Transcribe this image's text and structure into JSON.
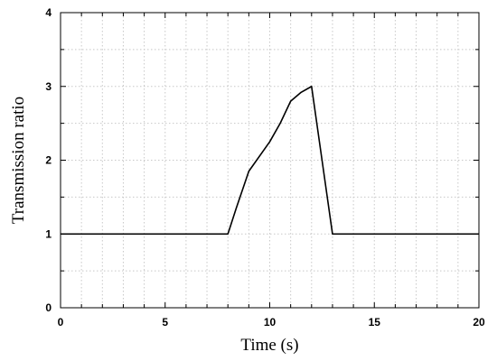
{
  "chart_data": {
    "type": "line",
    "title": "",
    "xlabel": "Time (s)",
    "ylabel": "Transmission ratio",
    "xlim": [
      0,
      20
    ],
    "ylim": [
      0,
      4
    ],
    "x_ticks": [
      0,
      5,
      10,
      15,
      20
    ],
    "y_ticks": [
      0,
      1,
      2,
      3,
      4
    ],
    "x_tick_labels": [
      "0",
      "5",
      "10",
      "15",
      "20"
    ],
    "y_tick_labels": [
      "0",
      "1",
      "2",
      "3",
      "4"
    ],
    "grid": true,
    "legend": "none",
    "line_color": "#000000",
    "series": [
      {
        "x": [
          0,
          8,
          8.4,
          9,
          10,
          10.5,
          11,
          11.5,
          12,
          12.1,
          12.2,
          13,
          20
        ],
        "y": [
          1,
          1,
          1.35,
          1.85,
          2.25,
          2.5,
          2.8,
          2.92,
          3.0,
          2.8,
          2.6,
          1.0,
          1.0
        ]
      }
    ]
  }
}
